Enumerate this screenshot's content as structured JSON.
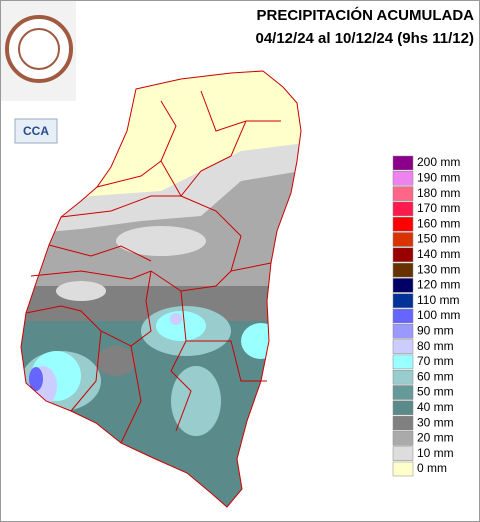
{
  "header": {
    "title": "PRECIPITACIÓN ACUMULADA",
    "subtitle": "04/12/24 al 10/12/24 (9hs 11/12)"
  },
  "badge": "CCA",
  "legend": [
    {
      "label": "200 mm",
      "color": "#8b008b"
    },
    {
      "label": "190 mm",
      "color": "#ee82ee"
    },
    {
      "label": "180 mm",
      "color": "#ff6688"
    },
    {
      "label": "170 mm",
      "color": "#ff1a4d"
    },
    {
      "label": "160 mm",
      "color": "#ff0000"
    },
    {
      "label": "150 mm",
      "color": "#d93300"
    },
    {
      "label": "140 mm",
      "color": "#990000"
    },
    {
      "label": "130 mm",
      "color": "#663300"
    },
    {
      "label": "120 mm",
      "color": "#000066"
    },
    {
      "label": "110 mm",
      "color": "#003399"
    },
    {
      "label": "100 mm",
      "color": "#6666ff"
    },
    {
      "label": "90 mm",
      "color": "#9999ff"
    },
    {
      "label": "80 mm",
      "color": "#ccccff"
    },
    {
      "label": "70 mm",
      "color": "#99ffff"
    },
    {
      "label": "60 mm",
      "color": "#99cccc"
    },
    {
      "label": "50 mm",
      "color": "#669999"
    },
    {
      "label": "40 mm",
      "color": "#5a8a8a"
    },
    {
      "label": "30 mm",
      "color": "#808080"
    },
    {
      "label": "20 mm",
      "color": "#aaaaaa"
    },
    {
      "label": "10 mm",
      "color": "#dddddd"
    },
    {
      "label": "0 mm",
      "color": "#ffffcc"
    }
  ]
}
